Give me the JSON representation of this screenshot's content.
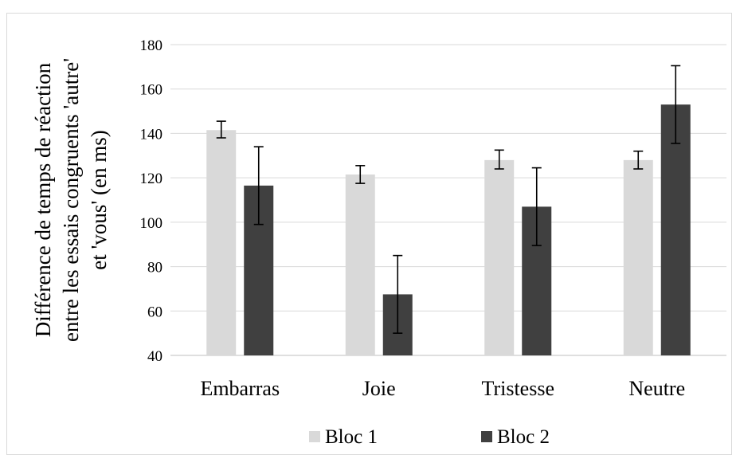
{
  "chart_data": {
    "type": "bar",
    "ylabel": [
      "Différence  de temps de réaction",
      "entre  les essais congruents  'autre'",
      "et 'vous' (en ms)"
    ],
    "ylim": [
      40,
      180
    ],
    "yticks": [
      40,
      60,
      80,
      100,
      120,
      140,
      160,
      180
    ],
    "grid": true,
    "legend_position": "bottom",
    "categories": [
      "Embarras",
      "Joie",
      "Tristesse",
      "Neutre"
    ],
    "series": [
      {
        "name": "Bloc 1",
        "color": "#d9d9d9",
        "values": [
          141.5,
          121.5,
          128,
          128
        ],
        "err_low": [
          138,
          117.5,
          124,
          124
        ],
        "err_high": [
          145.5,
          125.5,
          132.5,
          132
        ]
      },
      {
        "name": "Bloc 2",
        "color": "#404040",
        "values": [
          116.5,
          67.5,
          107,
          153
        ],
        "err_low": [
          99,
          50,
          89.5,
          135.5
        ],
        "err_high": [
          134,
          85,
          124.5,
          170.5
        ]
      }
    ]
  }
}
